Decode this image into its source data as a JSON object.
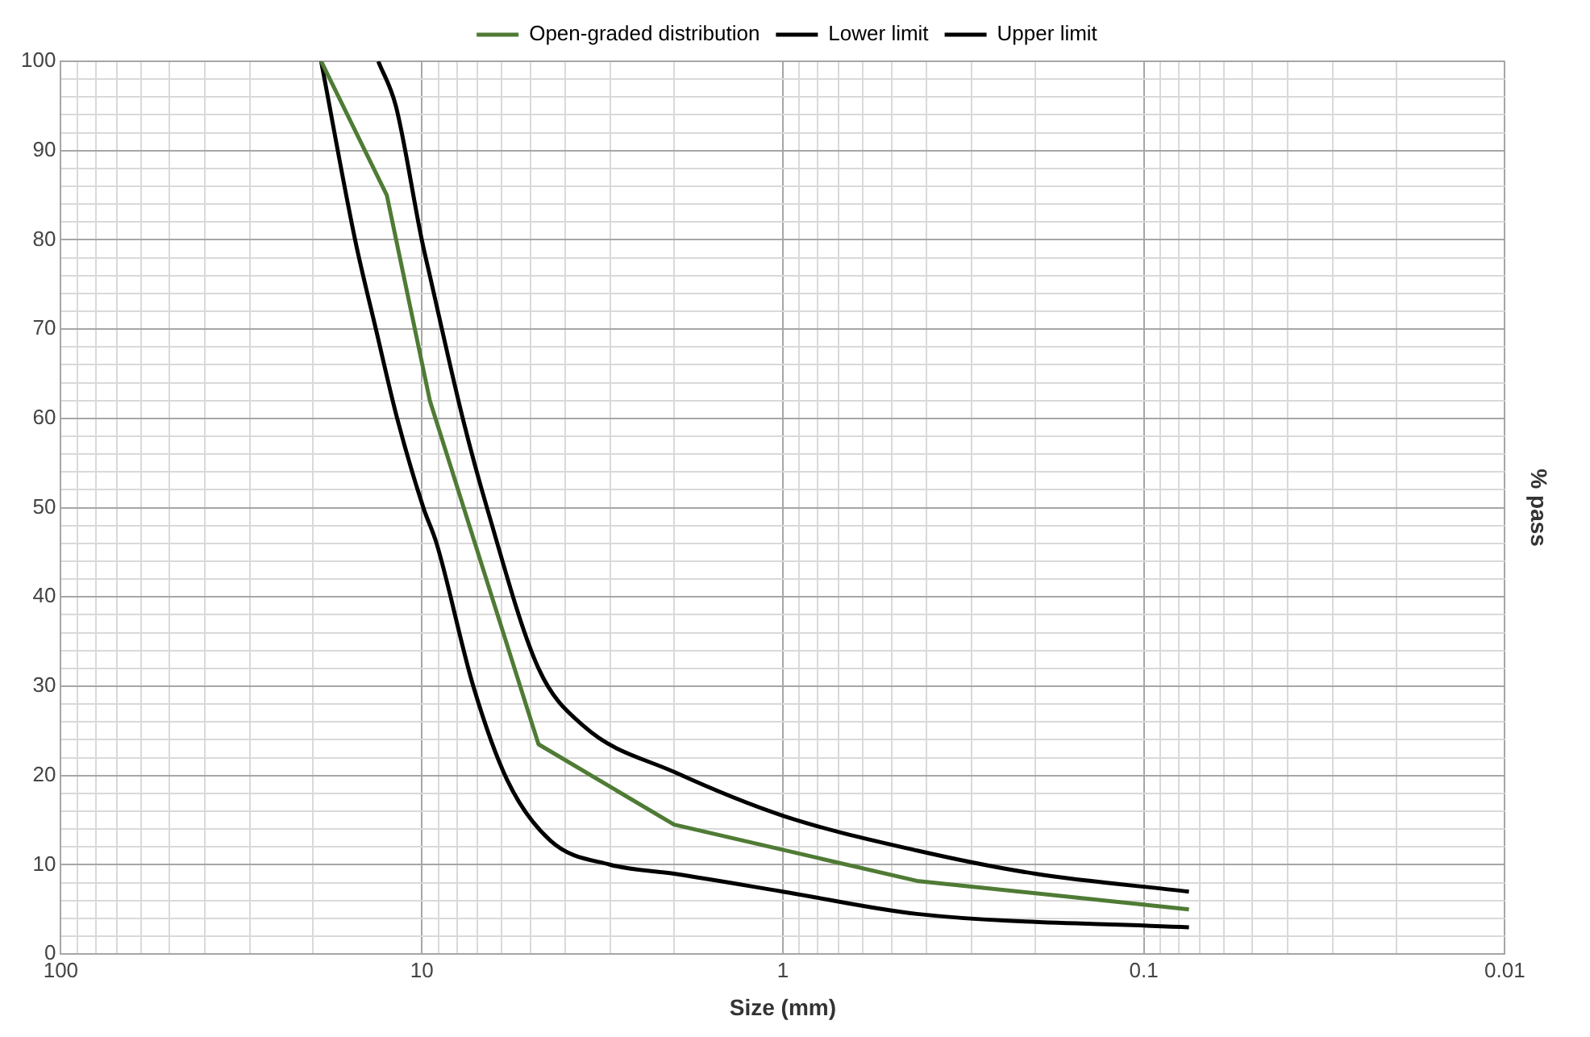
{
  "chart_data": {
    "type": "line",
    "xlabel": "Size (mm)",
    "ylabel": "% pass",
    "log": "x",
    "grid": true,
    "legend": "top",
    "marker": "none",
    "line_style": "solid",
    "xlim": [
      100,
      0.01
    ],
    "xticks": [
      100,
      {
        "value": 90,
        "label": null
      },
      {
        "value": 80,
        "label": null
      },
      {
        "value": 70,
        "label": null
      },
      {
        "value": 60,
        "label": null
      },
      {
        "value": 50,
        "label": null
      },
      {
        "value": 40,
        "label": null
      },
      {
        "value": 30,
        "label": null
      },
      {
        "value": 20,
        "label": null
      },
      10,
      {
        "value": 9,
        "label": null
      },
      {
        "value": 8,
        "label": null
      },
      {
        "value": 7,
        "label": null
      },
      {
        "value": 6,
        "label": null
      },
      {
        "value": 5,
        "label": null
      },
      {
        "value": 4,
        "label": null
      },
      {
        "value": 3,
        "label": null
      },
      {
        "value": 2,
        "label": null
      },
      1,
      {
        "value": 0.9,
        "label": null
      },
      {
        "value": 0.8,
        "label": null
      },
      {
        "value": 0.7,
        "label": null
      },
      {
        "value": 0.6,
        "label": null
      },
      {
        "value": 0.5,
        "label": null
      },
      {
        "value": 0.4,
        "label": null
      },
      {
        "value": 0.3,
        "label": null
      },
      {
        "value": 0.2,
        "label": null
      },
      0.1,
      {
        "value": 0.09,
        "label": null
      },
      {
        "value": 0.08,
        "label": null
      },
      {
        "value": 0.07,
        "label": null
      },
      {
        "value": 0.06,
        "label": null
      },
      {
        "value": 0.05,
        "label": null
      },
      {
        "value": 0.04,
        "label": null
      },
      {
        "value": 0.03,
        "label": null
      },
      {
        "value": 0.02,
        "label": null
      },
      0.01
    ],
    "ylim": [
      0,
      100
    ],
    "yticks": [
      0,
      {
        "value": 2,
        "label": null
      },
      {
        "value": 4,
        "label": null
      },
      {
        "value": 6,
        "label": null
      },
      {
        "value": 8,
        "label": null
      },
      10,
      {
        "value": 12,
        "label": null
      },
      {
        "value": 14,
        "label": null
      },
      {
        "value": 16,
        "label": null
      },
      {
        "value": 18,
        "label": null
      },
      20,
      {
        "value": 22,
        "label": null
      },
      {
        "value": 24,
        "label": null
      },
      {
        "value": 26,
        "label": null
      },
      {
        "value": 28,
        "label": null
      },
      30,
      {
        "value": 32,
        "label": null
      },
      {
        "value": 34,
        "label": null
      },
      {
        "value": 36,
        "label": null
      },
      {
        "value": 38,
        "label": null
      },
      40,
      {
        "value": 42,
        "label": null
      },
      {
        "value": 44,
        "label": null
      },
      {
        "value": 46,
        "label": null
      },
      {
        "value": 48,
        "label": null
      },
      50,
      {
        "value": 52,
        "label": null
      },
      {
        "value": 54,
        "label": null
      },
      {
        "value": 56,
        "label": null
      },
      {
        "value": 58,
        "label": null
      },
      60,
      {
        "value": 62,
        "label": null
      },
      {
        "value": 64,
        "label": null
      },
      {
        "value": 66,
        "label": null
      },
      {
        "value": 68,
        "label": null
      },
      70,
      {
        "value": 72,
        "label": null
      },
      {
        "value": 74,
        "label": null
      },
      {
        "value": 76,
        "label": null
      },
      {
        "value": 78,
        "label": null
      },
      80,
      {
        "value": 82,
        "label": null
      },
      {
        "value": 84,
        "label": null
      },
      {
        "value": 86,
        "label": null
      },
      {
        "value": 88,
        "label": null
      },
      90,
      {
        "value": 92,
        "label": null
      },
      {
        "value": 94,
        "label": null
      },
      {
        "value": 96,
        "label": null
      },
      {
        "value": 98,
        "label": null
      },
      100
    ],
    "series": [
      {
        "name": "Open-graded distribution",
        "color": "#4f7b35",
        "x": [
          19,
          12.5,
          9.5,
          4.75,
          2,
          0.425,
          0.075
        ],
        "values": [
          100,
          85,
          62,
          23.5,
          14.5,
          8.2,
          5
        ]
      },
      {
        "name": "Lower limit",
        "color": "#000000",
        "x": [
          19,
          15.3,
          13.4,
          11.7,
          9.9,
          9.1,
          7.2,
          5.8,
          4.4,
          3,
          2,
          1,
          0.425,
          0.075
        ],
        "values": [
          100,
          80,
          70,
          60,
          50,
          46,
          30,
          19.5,
          12.7,
          10,
          9,
          7,
          4.5,
          3
        ]
      },
      {
        "name": "Upper limit",
        "color": "#000000",
        "x": [
          13.2,
          11.8,
          10,
          9.5,
          7.7,
          6.6,
          4.75,
          3.55,
          2,
          1,
          0.425,
          0.2,
          0.075
        ],
        "values": [
          100,
          95,
          80,
          76,
          60,
          50,
          32,
          25.5,
          20.4,
          15.5,
          11.6,
          9,
          7
        ]
      }
    ]
  }
}
